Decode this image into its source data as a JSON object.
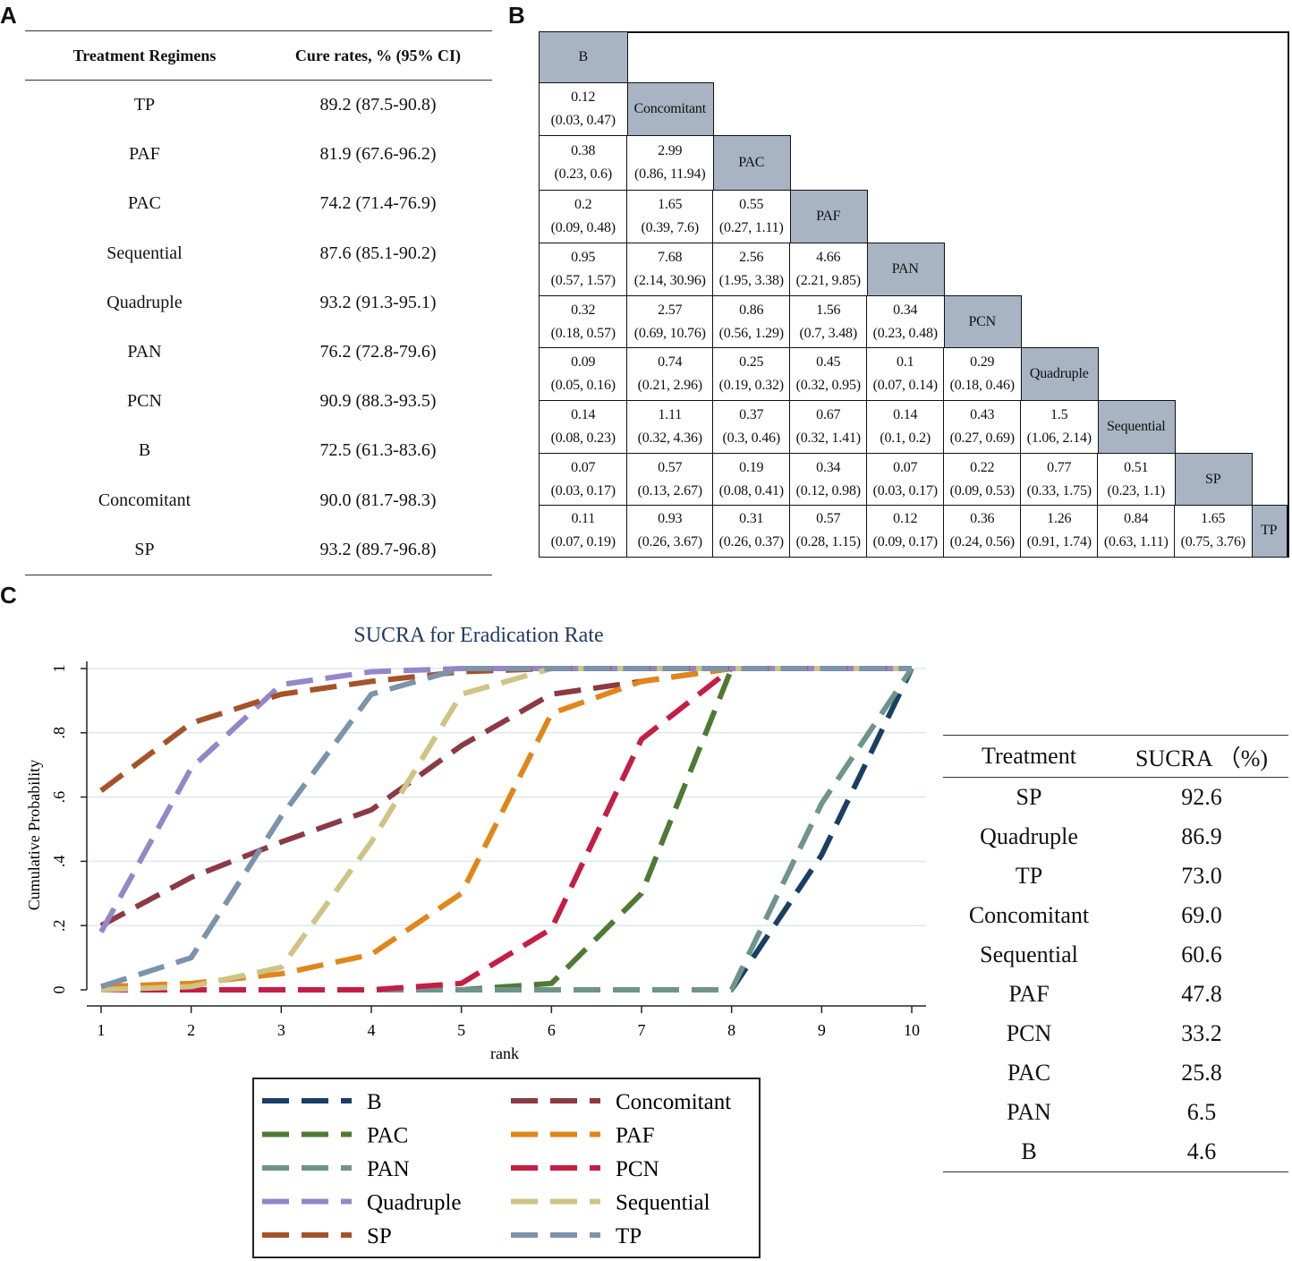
{
  "panel_labels": {
    "a": "A",
    "b": "B",
    "c": "C"
  },
  "table_a": {
    "headers": [
      "Treatment Regimens",
      "Cure rates, % (95% CI)"
    ],
    "rows": [
      {
        "regimen": "TP",
        "rate": "89.2 (87.5-90.8)"
      },
      {
        "regimen": "PAF",
        "rate": "81.9 (67.6-96.2)"
      },
      {
        "regimen": "PAC",
        "rate": "74.2 (71.4-76.9)"
      },
      {
        "regimen": "Sequential",
        "rate": "87.6 (85.1-90.2)"
      },
      {
        "regimen": "Quadruple",
        "rate": "93.2 (91.3-95.1)"
      },
      {
        "regimen": "PAN",
        "rate": "76.2 (72.8-79.6)"
      },
      {
        "regimen": "PCN",
        "rate": "90.9 (88.3-93.5)"
      },
      {
        "regimen": "B",
        "rate": "72.5 (61.3-83.6)"
      },
      {
        "regimen": "Concomitant",
        "rate": "90.0 (81.7-98.3)"
      },
      {
        "regimen": "SP",
        "rate": "93.2 (89.7-96.8)"
      }
    ]
  },
  "league": {
    "treatments": [
      "B",
      "Concomitant",
      "PAC",
      "PAF",
      "PAN",
      "PCN",
      "Quadruple",
      "Sequential",
      "SP",
      "TP"
    ],
    "rows": [
      [],
      [
        [
          "0.12",
          "(0.03, 0.47)"
        ]
      ],
      [
        [
          "0.38",
          "(0.23, 0.6)"
        ],
        [
          "2.99",
          "(0.86, 11.94)"
        ]
      ],
      [
        [
          "0.2",
          "(0.09, 0.48)"
        ],
        [
          "1.65",
          "(0.39, 7.6)"
        ],
        [
          "0.55",
          "(0.27, 1.11)"
        ]
      ],
      [
        [
          "0.95",
          "(0.57, 1.57)"
        ],
        [
          "7.68",
          "(2.14, 30.96)"
        ],
        [
          "2.56",
          "(1.95, 3.38)"
        ],
        [
          "4.66",
          "(2.21, 9.85)"
        ]
      ],
      [
        [
          "0.32",
          "(0.18, 0.57)"
        ],
        [
          "2.57",
          "(0.69, 10.76)"
        ],
        [
          "0.86",
          "(0.56, 1.29)"
        ],
        [
          "1.56",
          "(0.7, 3.48)"
        ],
        [
          "0.34",
          "(0.23, 0.48)"
        ]
      ],
      [
        [
          "0.09",
          "(0.05, 0.16)"
        ],
        [
          "0.74",
          "(0.21, 2.96)"
        ],
        [
          "0.25",
          "(0.19, 0.32)"
        ],
        [
          "0.45",
          "(0.32, 0.95)"
        ],
        [
          "0.1",
          "(0.07, 0.14)"
        ],
        [
          "0.29",
          "(0.18, 0.46)"
        ]
      ],
      [
        [
          "0.14",
          "(0.08, 0.23)"
        ],
        [
          "1.11",
          "(0.32, 4.36)"
        ],
        [
          "0.37",
          "(0.3, 0.46)"
        ],
        [
          "0.67",
          "(0.32, 1.41)"
        ],
        [
          "0.14",
          "(0.1, 0.2)"
        ],
        [
          "0.43",
          "(0.27, 0.69)"
        ],
        [
          "1.5",
          "(1.06, 2.14)"
        ]
      ],
      [
        [
          "0.07",
          "(0.03, 0.17)"
        ],
        [
          "0.57",
          "(0.13, 2.67)"
        ],
        [
          "0.19",
          "(0.08, 0.41)"
        ],
        [
          "0.34",
          "(0.12, 0.98)"
        ],
        [
          "0.07",
          "(0.03, 0.17)"
        ],
        [
          "0.22",
          "(0.09, 0.53)"
        ],
        [
          "0.77",
          "(0.33, 1.75)"
        ],
        [
          "0.51",
          "(0.23, 1.1)"
        ]
      ],
      [
        [
          "0.11",
          "(0.07, 0.19)"
        ],
        [
          "0.93",
          "(0.26, 3.67)"
        ],
        [
          "0.31",
          "(0.26, 0.37)"
        ],
        [
          "0.57",
          "(0.28, 1.15)"
        ],
        [
          "0.12",
          "(0.09, 0.17)"
        ],
        [
          "0.36",
          "(0.24, 0.56)"
        ],
        [
          "1.26",
          "(0.91, 1.74)"
        ],
        [
          "0.84",
          "(0.63, 1.11)"
        ],
        [
          "1.65",
          "(0.75, 3.76)"
        ]
      ]
    ]
  },
  "chart_data": {
    "type": "line",
    "title": "SUCRA for Eradication Rate",
    "xlabel": "rank",
    "ylabel": "Cumulative Probability",
    "x": [
      1,
      2,
      3,
      4,
      5,
      6,
      7,
      8,
      9,
      10
    ],
    "xticks": [
      "1",
      "2",
      "3",
      "4",
      "5",
      "6",
      "7",
      "8",
      "9",
      "10"
    ],
    "yticks": [
      0,
      0.2,
      0.4,
      0.6,
      0.8,
      1
    ],
    "ytick_labels": [
      "0",
      ".2",
      ".4",
      ".6",
      ".8",
      "1"
    ],
    "ylim": [
      0,
      1
    ],
    "xlim": [
      1,
      10
    ],
    "grid": true,
    "legend_position": "bottom",
    "series": [
      {
        "name": "B",
        "color": "#1a3f66",
        "values": [
          0,
          0,
          0,
          0,
          0,
          0,
          0,
          0,
          0.42,
          1
        ]
      },
      {
        "name": "Concomitant",
        "color": "#8b3a44",
        "values": [
          0.2,
          0.35,
          0.46,
          0.56,
          0.76,
          0.92,
          0.96,
          1,
          1,
          1
        ]
      },
      {
        "name": "PAC",
        "color": "#4f7a34",
        "values": [
          0,
          0,
          0,
          0,
          0,
          0.02,
          0.3,
          1,
          1,
          1
        ]
      },
      {
        "name": "PAF",
        "color": "#e0861a",
        "values": [
          0.01,
          0.02,
          0.05,
          0.11,
          0.3,
          0.86,
          0.96,
          1,
          1,
          1
        ]
      },
      {
        "name": "PAN",
        "color": "#6f948a",
        "values": [
          0,
          0,
          0,
          0,
          0,
          0,
          0,
          0,
          0.58,
          1
        ]
      },
      {
        "name": "PCN",
        "color": "#c41e45",
        "values": [
          0,
          0,
          0,
          0,
          0.02,
          0.19,
          0.78,
          1,
          1,
          1
        ]
      },
      {
        "name": "Quadruple",
        "color": "#9387c7",
        "values": [
          0.18,
          0.69,
          0.95,
          0.99,
          1,
          1,
          1,
          1,
          1,
          1
        ]
      },
      {
        "name": "Sequential",
        "color": "#cfc385",
        "values": [
          0,
          0.01,
          0.07,
          0.46,
          0.92,
          1,
          1,
          1,
          1,
          1
        ]
      },
      {
        "name": "SP",
        "color": "#a55229",
        "values": [
          0.62,
          0.83,
          0.92,
          0.96,
          0.99,
          1,
          1,
          1,
          1,
          1
        ]
      },
      {
        "name": "TP",
        "color": "#7b93ab",
        "values": [
          0.01,
          0.1,
          0.54,
          0.92,
          1,
          1,
          1,
          1,
          1,
          1
        ]
      }
    ]
  },
  "sucra_table": {
    "headers": [
      "Treatment",
      "SUCRA （%)"
    ],
    "rows": [
      {
        "treatment": "SP",
        "value": "92.6"
      },
      {
        "treatment": "Quadruple",
        "value": "86.9"
      },
      {
        "treatment": "TP",
        "value": "73.0"
      },
      {
        "treatment": "Concomitant",
        "value": "69.0"
      },
      {
        "treatment": "Sequential",
        "value": "60.6"
      },
      {
        "treatment": "PAF",
        "value": "47.8"
      },
      {
        "treatment": "PCN",
        "value": "33.2"
      },
      {
        "treatment": "PAC",
        "value": "25.8"
      },
      {
        "treatment": "PAN",
        "value": "6.5"
      },
      {
        "treatment": "B",
        "value": "4.6"
      }
    ]
  }
}
